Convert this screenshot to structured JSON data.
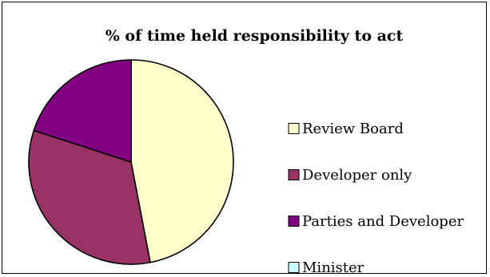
{
  "chart_data": {
    "type": "pie",
    "title": "% of time held responsibility to act",
    "categories": [
      "Review Board",
      "Developer only",
      "Parties and Developer",
      "Minister"
    ],
    "values": [
      47,
      33,
      20,
      0
    ],
    "colors": [
      "#FFFFCC",
      "#993366",
      "#800080",
      "#CCFFFF"
    ],
    "legend_position": "right"
  }
}
